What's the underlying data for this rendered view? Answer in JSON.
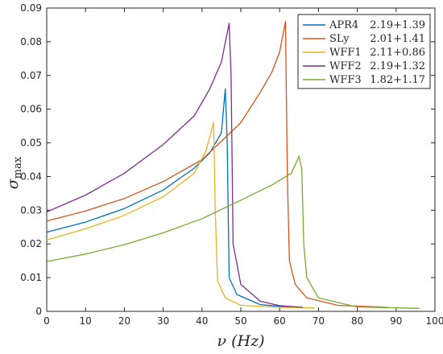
{
  "chart_data": {
    "type": "line",
    "title": "",
    "xlabel": "ν (Hz)",
    "ylabel": "σ",
    "ylabel_subscript": "max",
    "xlim": [
      0,
      100
    ],
    "ylim": [
      0,
      0.09
    ],
    "xticks": [
      "0",
      "10",
      "20",
      "30",
      "40",
      "50",
      "60",
      "70",
      "80",
      "90",
      "100"
    ],
    "yticks": [
      "0",
      "0.01",
      "0.02",
      "0.03",
      "0.04",
      "0.05",
      "0.06",
      "0.07",
      "0.08",
      "0.09"
    ],
    "grid": false,
    "legend_position": "top-right",
    "series": [
      {
        "name": "APR4",
        "mass_label": "2.19+1.39",
        "color": "#0072BD",
        "points": [
          [
            0,
            0.0235
          ],
          [
            10,
            0.0265
          ],
          [
            20,
            0.0305
          ],
          [
            30,
            0.036
          ],
          [
            38,
            0.0425
          ],
          [
            42,
            0.047
          ],
          [
            45,
            0.053
          ],
          [
            46,
            0.066
          ],
          [
            46.5,
            0.05
          ],
          [
            47,
            0.01
          ],
          [
            49,
            0.005
          ],
          [
            55,
            0.002
          ],
          [
            60,
            0.0015
          ],
          [
            64,
            0.0013
          ]
        ]
      },
      {
        "name": "SLy",
        "mass_label": "2.01+1.41",
        "color": "#D95319",
        "points": [
          [
            0,
            0.0268
          ],
          [
            10,
            0.0298
          ],
          [
            20,
            0.0335
          ],
          [
            30,
            0.0385
          ],
          [
            40,
            0.045
          ],
          [
            50,
            0.056
          ],
          [
            55,
            0.065
          ],
          [
            58,
            0.071
          ],
          [
            60,
            0.077
          ],
          [
            61.5,
            0.086
          ],
          [
            62,
            0.04
          ],
          [
            62.5,
            0.015
          ],
          [
            64,
            0.008
          ],
          [
            67,
            0.004
          ],
          [
            75,
            0.0018
          ],
          [
            88,
            0.0012
          ]
        ]
      },
      {
        "name": "WFF1",
        "mass_label": "2.11+0.86",
        "color": "#EDB120",
        "points": [
          [
            0,
            0.0212
          ],
          [
            10,
            0.0245
          ],
          [
            20,
            0.0285
          ],
          [
            30,
            0.034
          ],
          [
            38,
            0.041
          ],
          [
            41,
            0.0475
          ],
          [
            42.5,
            0.054
          ],
          [
            43,
            0.056
          ],
          [
            43.4,
            0.03
          ],
          [
            44,
            0.009
          ],
          [
            46,
            0.004
          ],
          [
            50,
            0.0018
          ],
          [
            60,
            0.0012
          ],
          [
            69,
            0.001
          ]
        ]
      },
      {
        "name": "WFF2",
        "mass_label": "2.19+1.32",
        "color": "#7E2F8E",
        "points": [
          [
            0,
            0.0295
          ],
          [
            10,
            0.0345
          ],
          [
            20,
            0.041
          ],
          [
            30,
            0.0495
          ],
          [
            38,
            0.058
          ],
          [
            42,
            0.066
          ],
          [
            45,
            0.074
          ],
          [
            47,
            0.0855
          ],
          [
            47.5,
            0.07
          ],
          [
            48,
            0.02
          ],
          [
            50,
            0.008
          ],
          [
            55,
            0.003
          ],
          [
            60,
            0.0017
          ],
          [
            66,
            0.0012
          ]
        ]
      },
      {
        "name": "WFF3",
        "mass_label": "1.82+1.17",
        "color": "#77AC30",
        "points": [
          [
            0,
            0.0148
          ],
          [
            10,
            0.017
          ],
          [
            20,
            0.0198
          ],
          [
            30,
            0.0233
          ],
          [
            40,
            0.0275
          ],
          [
            50,
            0.033
          ],
          [
            58,
            0.0375
          ],
          [
            63,
            0.041
          ],
          [
            65,
            0.046
          ],
          [
            65.7,
            0.042
          ],
          [
            66.2,
            0.02
          ],
          [
            67,
            0.01
          ],
          [
            70,
            0.004
          ],
          [
            80,
            0.0013
          ],
          [
            96,
            0.0009
          ]
        ]
      }
    ]
  }
}
